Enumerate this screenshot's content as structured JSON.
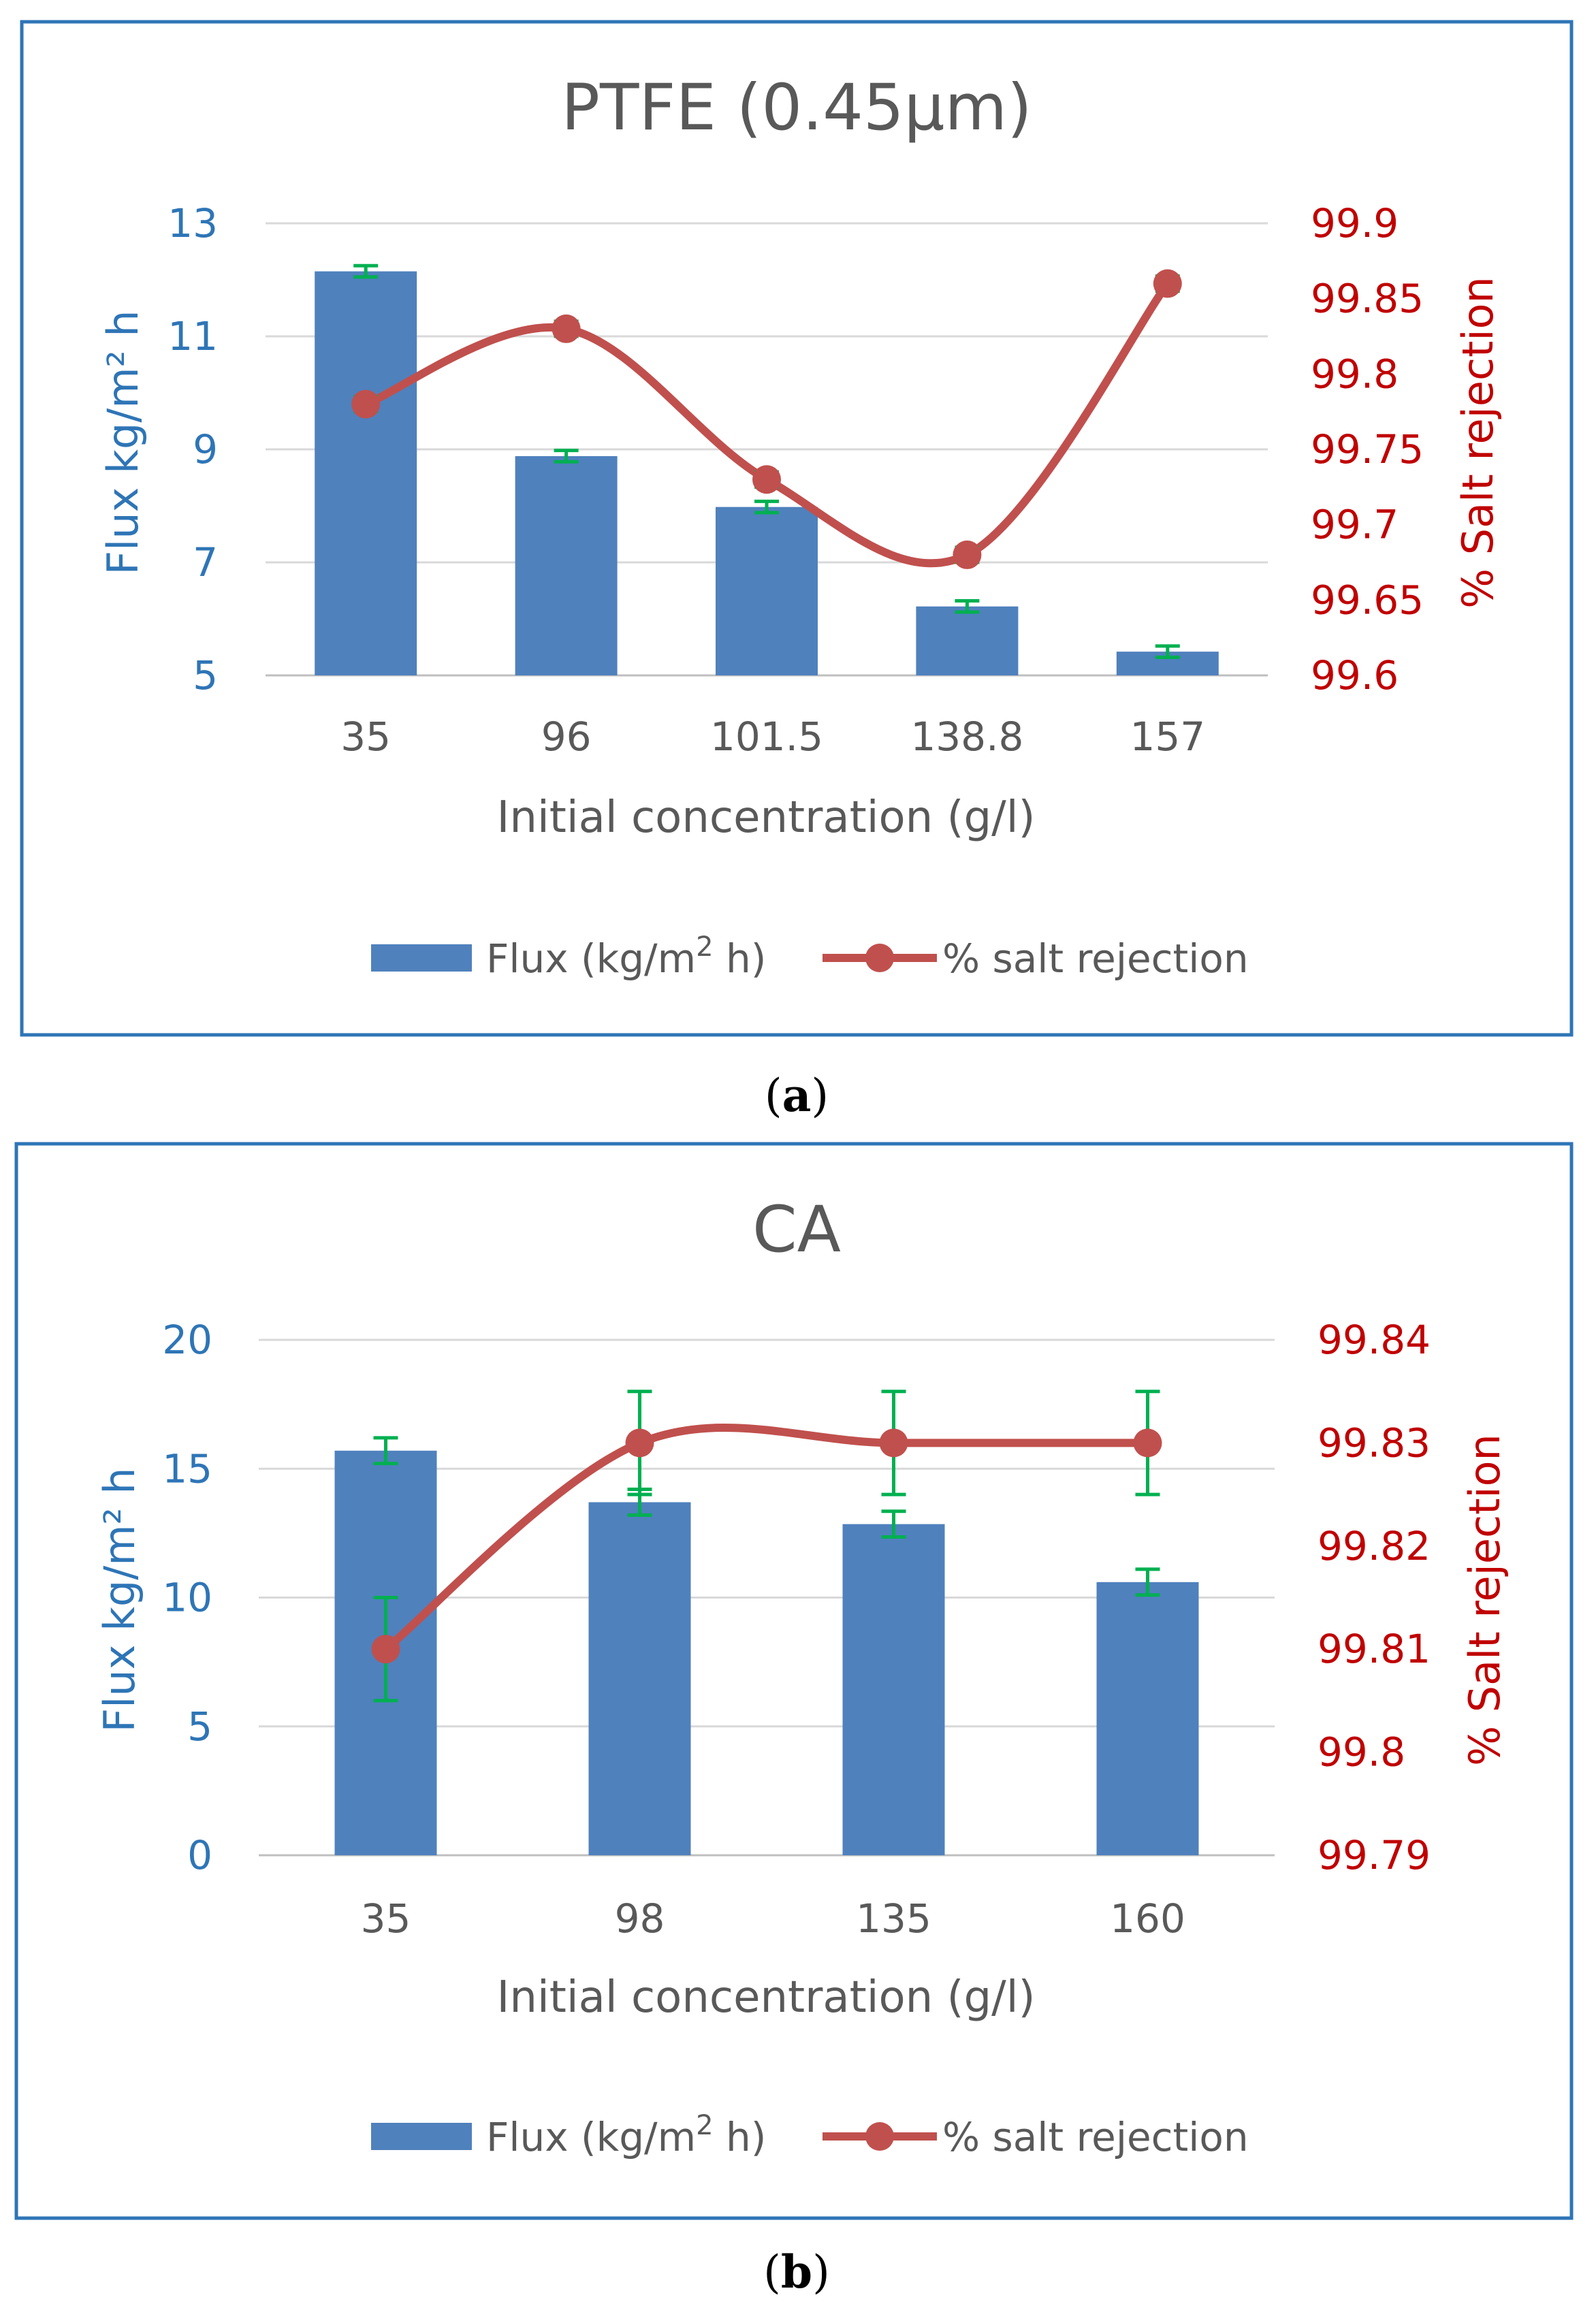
{
  "colors": {
    "frame": "#2e75b6",
    "bar": "#4f81bd",
    "line": "#c0504d",
    "error": "#00b050",
    "left_axis_text": "#2e75b6",
    "right_axis_text": "#c00000",
    "title_text": "#595959",
    "gridline": "#d9d9d9"
  },
  "panels": [
    {
      "caption_pre": "(",
      "caption_letter": "a",
      "caption_post": ")"
    },
    {
      "caption_pre": "(",
      "caption_letter": "b",
      "caption_post": ")"
    }
  ],
  "chart_data": [
    {
      "type": "bar",
      "title": "PTFE (0.45μm)",
      "xlabel": "Initial concentration (g/l)",
      "ylabel_left": "Flux kg/m² h",
      "ylabel_right": "% Salt rejection",
      "categories": [
        "35",
        "96",
        "101.5",
        "138.8",
        "157"
      ],
      "y_left": {
        "min": 5,
        "max": 13,
        "ticks": [
          "5",
          "7",
          "9",
          "11",
          "13"
        ]
      },
      "y_right": {
        "min": 99.6,
        "max": 99.9,
        "ticks": [
          "99.6",
          "99.65",
          "99.7",
          "99.75",
          "99.8",
          "99.85",
          "99.9"
        ]
      },
      "grid": true,
      "legend_position": "bottom",
      "series": [
        {
          "name": "Flux (kg/m2 h)",
          "legend_main": "Flux (kg/m",
          "legend_sup": "2",
          "legend_end": " h)",
          "type": "bar",
          "axis": "left",
          "values": [
            12.15,
            8.88,
            7.98,
            6.22,
            5.42
          ],
          "errors": [
            0.1,
            0.1,
            0.1,
            0.1,
            0.1
          ]
        },
        {
          "name": "% salt rejection",
          "type": "line",
          "axis": "right",
          "smooth": true,
          "values": [
            99.78,
            99.83,
            99.73,
            99.68,
            99.86
          ],
          "errors": [
            0.005,
            0.005,
            0.005,
            0.005,
            0.005
          ]
        }
      ]
    },
    {
      "type": "bar",
      "title": "CA",
      "xlabel": "Initial concentration (g/l)",
      "ylabel_left": "Flux kg/m² h",
      "ylabel_right": "% Salt rejection",
      "categories": [
        "35",
        "98",
        "135",
        "160"
      ],
      "y_left": {
        "min": 0,
        "max": 20,
        "ticks": [
          "0",
          "5",
          "10",
          "15",
          "20"
        ]
      },
      "y_right": {
        "min": 99.79,
        "max": 99.84,
        "ticks": [
          "99.79",
          "99.8",
          "99.81",
          "99.82",
          "99.83",
          "99.84"
        ]
      },
      "grid": true,
      "legend_position": "bottom",
      "series": [
        {
          "name": "Flux (kg/m2 h)",
          "legend_main": "Flux (kg/m",
          "legend_sup": "2",
          "legend_end": " h)",
          "type": "bar",
          "axis": "left",
          "values": [
            15.7,
            13.7,
            12.85,
            10.6
          ],
          "errors": [
            0.5,
            0.5,
            0.5,
            0.5
          ]
        },
        {
          "name": "% salt rejection",
          "type": "line",
          "axis": "right",
          "smooth": true,
          "values": [
            99.81,
            99.83,
            99.83,
            99.83
          ],
          "errors": [
            0.005,
            0.005,
            0.005,
            0.005
          ]
        }
      ]
    }
  ]
}
